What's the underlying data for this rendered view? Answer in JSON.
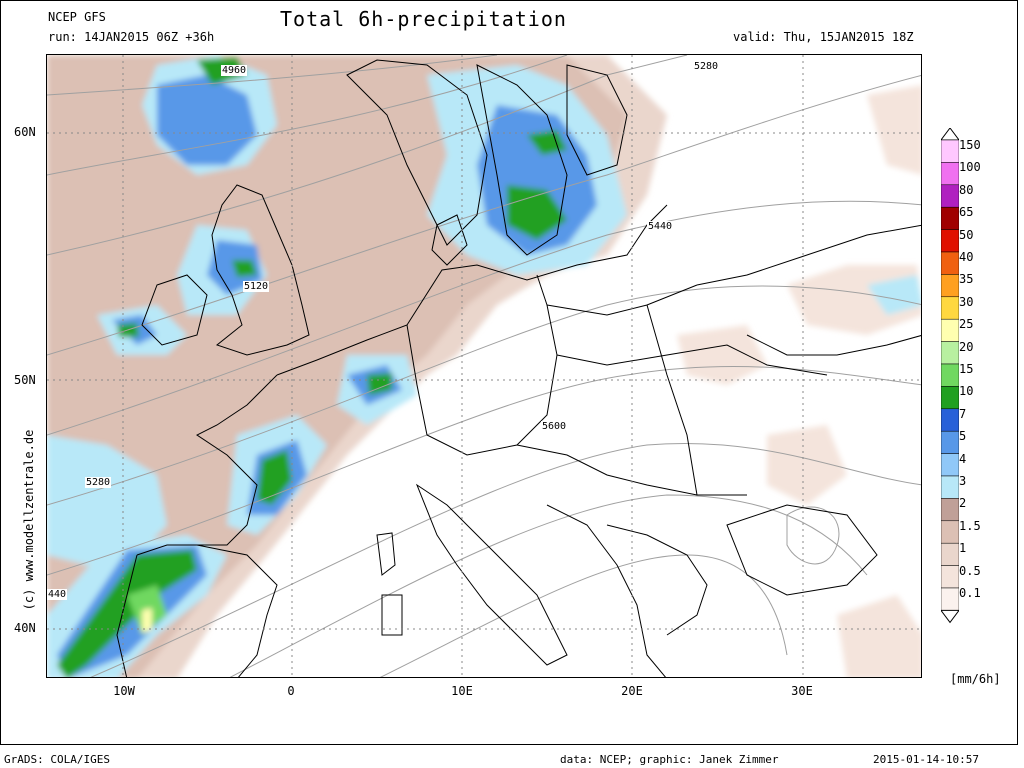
{
  "header": {
    "model": "NCEP GFS",
    "run": "run: 14JAN2015 06Z +36h",
    "title": "Total 6h-precipitation",
    "valid": "valid: Thu, 15JAN2015 18Z"
  },
  "map": {
    "lat_labels": [
      "60N",
      "50N",
      "40N"
    ],
    "lon_labels": [
      "10W",
      "0",
      "10E",
      "20E",
      "30E"
    ],
    "contour_labels": [
      "4960",
      "5280",
      "5440",
      "5120",
      "5600",
      "5280",
      "440"
    ],
    "copyright": "(c) www.modellzentrale.de"
  },
  "legend": {
    "values": [
      "150",
      "100",
      "80",
      "65",
      "50",
      "40",
      "35",
      "30",
      "25",
      "20",
      "15",
      "10",
      "7",
      "5",
      "4",
      "3",
      "2",
      "1.5",
      "1",
      "0.5",
      "0.1"
    ],
    "colors": [
      "#ffc8ff",
      "#f070f0",
      "#b020c0",
      "#a00000",
      "#e01000",
      "#f06010",
      "#ffa020",
      "#ffd840",
      "#ffffb0",
      "#b8f0a0",
      "#70d860",
      "#20a020",
      "#2860d8",
      "#5898e8",
      "#90c8f8",
      "#b8e8f8",
      "#c0a098",
      "#dcc0b4",
      "#ead6cc",
      "#f4e4dc",
      "#fbf2ee"
    ],
    "units": "[mm/6h]"
  },
  "footer": {
    "grads": "GrADS: COLA/IGES",
    "credit": "data: NCEP; graphic: Janek Zimmer",
    "timestamp": "2015-01-14-10:57"
  }
}
